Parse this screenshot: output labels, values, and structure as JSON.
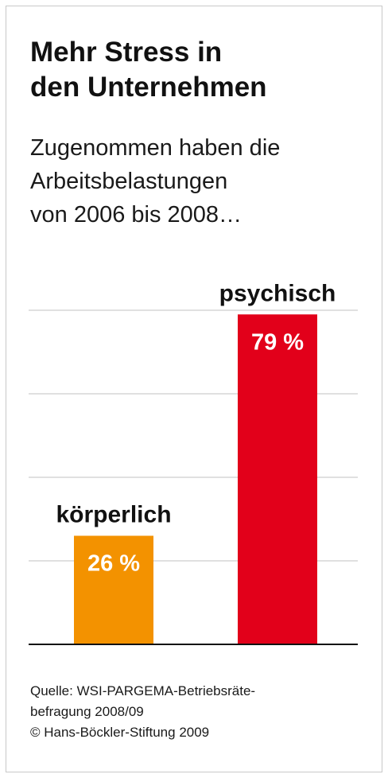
{
  "chart_data": {
    "type": "bar",
    "title": "Mehr Stress in\nden Unternehmen",
    "subtitle": "Zugenommen haben die\nArbeitsbelastungen\nvon 2006 bis 2008…",
    "categories": [
      "körperlich",
      "psychisch"
    ],
    "values": [
      26,
      79
    ],
    "value_labels": [
      "26 %",
      "79 %"
    ],
    "colors": [
      "#f39200",
      "#e2001a"
    ],
    "ylim": [
      0,
      80
    ],
    "grid": true
  },
  "source": "Quelle: WSI-PARGEMA-Betriebsräte-\nbefragung 2008/09\n© Hans-Böckler-Stiftung 2009"
}
